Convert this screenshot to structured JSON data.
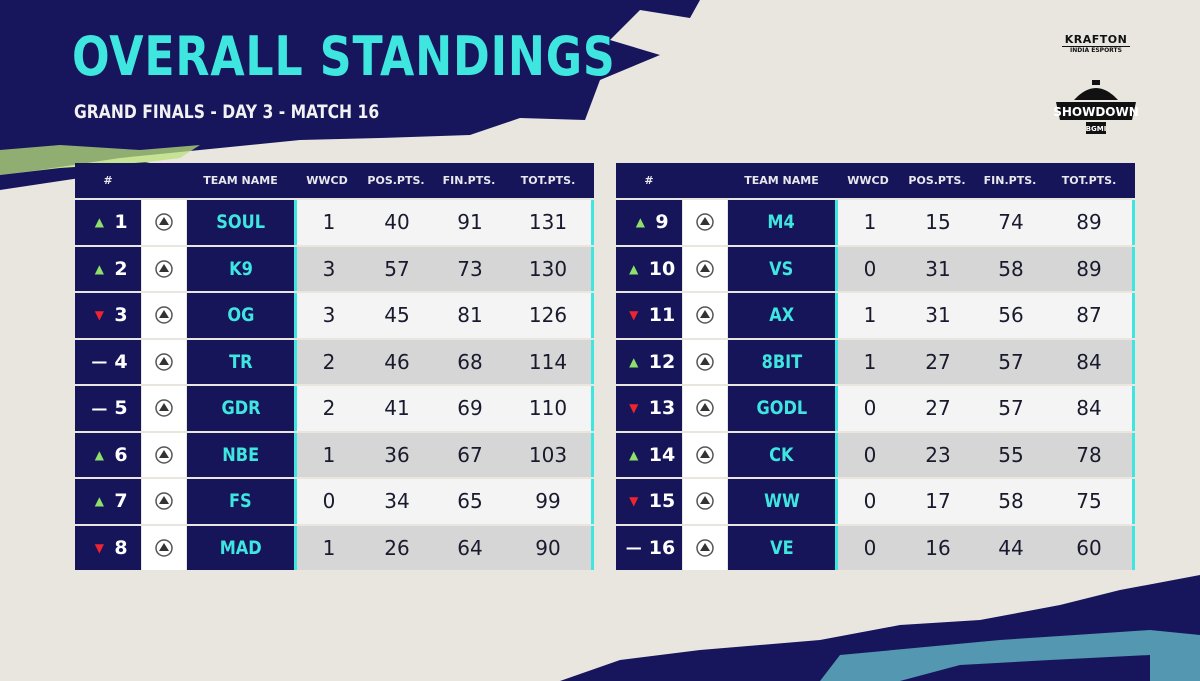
{
  "header": {
    "title": "OVERALL STANDINGS",
    "subtitle": "GRAND FINALS - DAY 3 - MATCH 16"
  },
  "branding": {
    "krafton": "KRAFTON",
    "krafton_sub": "INDIA ESPORTS",
    "event_logo": "SHOWDOWN",
    "event_badge": "BGMI"
  },
  "columns": {
    "rank": "#",
    "team": "TEAM NAME",
    "wwcd": "WWCD",
    "pos": "POS.PTS.",
    "fin": "FIN.PTS.",
    "tot": "TOT.PTS."
  },
  "colors": {
    "navy": "#16155a",
    "cyan": "#3fe6df",
    "up": "#8fe06a",
    "down": "#ee2430"
  },
  "left_table": [
    {
      "rank": "1",
      "trend": "up",
      "team": "SOUL",
      "wwcd": "1",
      "pos": "40",
      "fin": "91",
      "tot": "131"
    },
    {
      "rank": "2",
      "trend": "up",
      "team": "K9",
      "wwcd": "3",
      "pos": "57",
      "fin": "73",
      "tot": "130"
    },
    {
      "rank": "3",
      "trend": "down",
      "team": "OG",
      "wwcd": "3",
      "pos": "45",
      "fin": "81",
      "tot": "126"
    },
    {
      "rank": "4",
      "trend": "same",
      "team": "TR",
      "wwcd": "2",
      "pos": "46",
      "fin": "68",
      "tot": "114"
    },
    {
      "rank": "5",
      "trend": "same",
      "team": "GDR",
      "wwcd": "2",
      "pos": "41",
      "fin": "69",
      "tot": "110"
    },
    {
      "rank": "6",
      "trend": "up",
      "team": "NBE",
      "wwcd": "1",
      "pos": "36",
      "fin": "67",
      "tot": "103"
    },
    {
      "rank": "7",
      "trend": "up",
      "team": "FS",
      "wwcd": "0",
      "pos": "34",
      "fin": "65",
      "tot": "99"
    },
    {
      "rank": "8",
      "trend": "down",
      "team": "MAD",
      "wwcd": "1",
      "pos": "26",
      "fin": "64",
      "tot": "90"
    }
  ],
  "right_table": [
    {
      "rank": "9",
      "trend": "up",
      "team": "M4",
      "wwcd": "1",
      "pos": "15",
      "fin": "74",
      "tot": "89"
    },
    {
      "rank": "10",
      "trend": "up",
      "team": "VS",
      "wwcd": "0",
      "pos": "31",
      "fin": "58",
      "tot": "89"
    },
    {
      "rank": "11",
      "trend": "down",
      "team": "AX",
      "wwcd": "1",
      "pos": "31",
      "fin": "56",
      "tot": "87"
    },
    {
      "rank": "12",
      "trend": "up",
      "team": "8BIT",
      "wwcd": "1",
      "pos": "27",
      "fin": "57",
      "tot": "84"
    },
    {
      "rank": "13",
      "trend": "down",
      "team": "GODL",
      "wwcd": "0",
      "pos": "27",
      "fin": "57",
      "tot": "84"
    },
    {
      "rank": "14",
      "trend": "up",
      "team": "CK",
      "wwcd": "0",
      "pos": "23",
      "fin": "55",
      "tot": "78"
    },
    {
      "rank": "15",
      "trend": "down",
      "team": "WW",
      "wwcd": "0",
      "pos": "17",
      "fin": "58",
      "tot": "75"
    },
    {
      "rank": "16",
      "trend": "same",
      "team": "VE",
      "wwcd": "0",
      "pos": "16",
      "fin": "44",
      "tot": "60"
    }
  ]
}
